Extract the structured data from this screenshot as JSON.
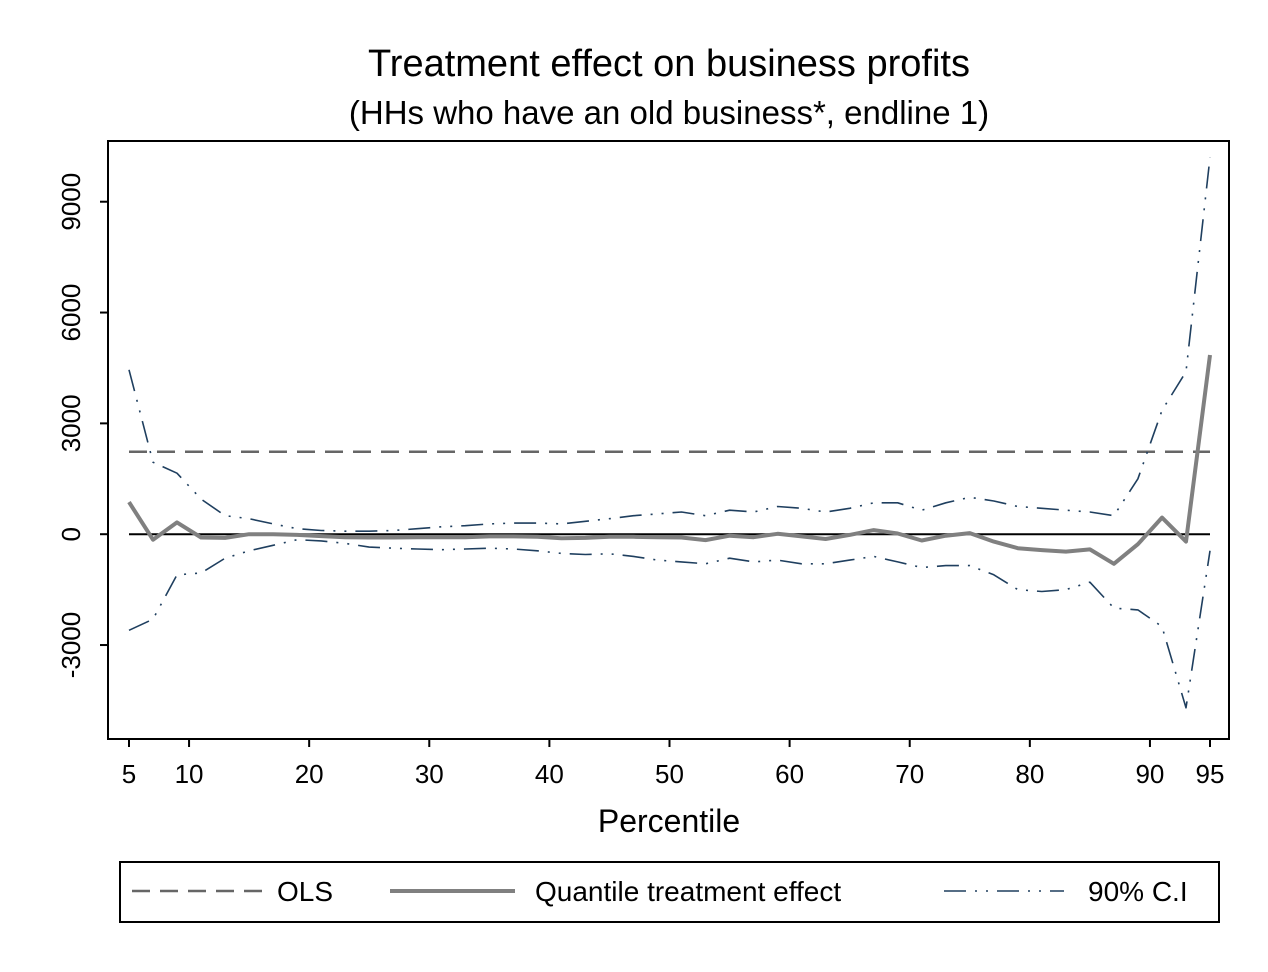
{
  "chart_data": {
    "type": "line",
    "title": "Treatment effect on business profits",
    "subtitle": "(HHs who have an old business*, endline 1)",
    "xlabel": "Percentile",
    "ylabel": "",
    "xlim": [
      5,
      95
    ],
    "ylim": [
      -5300,
      10400
    ],
    "x_ticks": [
      5,
      10,
      20,
      30,
      40,
      50,
      60,
      70,
      80,
      90,
      95
    ],
    "y_ticks": [
      -3000,
      0,
      3000,
      6000,
      9000
    ],
    "grid": false,
    "legend_position": "bottom",
    "zero_line": 0,
    "x": [
      5,
      7,
      9,
      11,
      13,
      15,
      17,
      19,
      21,
      23,
      25,
      27,
      29,
      31,
      33,
      35,
      37,
      39,
      41,
      43,
      45,
      47,
      49,
      51,
      53,
      55,
      57,
      59,
      61,
      63,
      65,
      67,
      69,
      71,
      73,
      75,
      77,
      79,
      81,
      83,
      85,
      87,
      89,
      91,
      93,
      95
    ],
    "series": [
      {
        "name": "OLS",
        "style": "dashed",
        "color": "#666666",
        "values": [
          2230,
          2230,
          2230,
          2230,
          2230,
          2230,
          2230,
          2230,
          2230,
          2230,
          2230,
          2230,
          2230,
          2230,
          2230,
          2230,
          2230,
          2230,
          2230,
          2230,
          2230,
          2230,
          2230,
          2230,
          2230,
          2230,
          2230,
          2230,
          2230,
          2230,
          2230,
          2230,
          2230,
          2230,
          2230,
          2230,
          2230,
          2230,
          2230,
          2230,
          2230,
          2230,
          2230,
          2230,
          2230,
          2230
        ]
      },
      {
        "name": "Quantile treatment effect",
        "style": "solid",
        "color": "#808080",
        "values": [
          870,
          -150,
          320,
          -90,
          -100,
          0,
          0,
          -20,
          -50,
          -80,
          -90,
          -90,
          -80,
          -80,
          -80,
          -60,
          -60,
          -70,
          -110,
          -100,
          -70,
          -70,
          -80,
          -90,
          -160,
          -40,
          -80,
          10,
          -60,
          -130,
          -20,
          110,
          20,
          -170,
          -40,
          30,
          -200,
          -380,
          -430,
          -470,
          -410,
          -800,
          -270,
          450,
          -200,
          4850
        ]
      },
      {
        "name": "90% C.I",
        "style": "dash-dot",
        "color": "#1f3f5f",
        "values": [
          4450,
          1950,
          1650,
          950,
          500,
          420,
          280,
          150,
          100,
          80,
          80,
          100,
          150,
          200,
          230,
          280,
          300,
          300,
          280,
          350,
          420,
          500,
          550,
          600,
          500,
          650,
          600,
          750,
          700,
          600,
          700,
          850,
          850,
          650,
          850,
          1000,
          900,
          750,
          700,
          650,
          600,
          500,
          1500,
          3350,
          4400,
          10200
        ]
      },
      {
        "name": "",
        "style": "dash-dot",
        "color": "#1f3f5f",
        "values": [
          -2600,
          -2300,
          -1100,
          -1050,
          -650,
          -450,
          -300,
          -150,
          -180,
          -250,
          -350,
          -380,
          -400,
          -420,
          -400,
          -380,
          -400,
          -450,
          -520,
          -550,
          -530,
          -600,
          -700,
          -750,
          -800,
          -650,
          -750,
          -700,
          -800,
          -800,
          -700,
          -600,
          -750,
          -900,
          -850,
          -850,
          -1100,
          -1500,
          -1550,
          -1500,
          -1300,
          -2000,
          -2050,
          -2500,
          -4700,
          -450
        ]
      }
    ]
  }
}
